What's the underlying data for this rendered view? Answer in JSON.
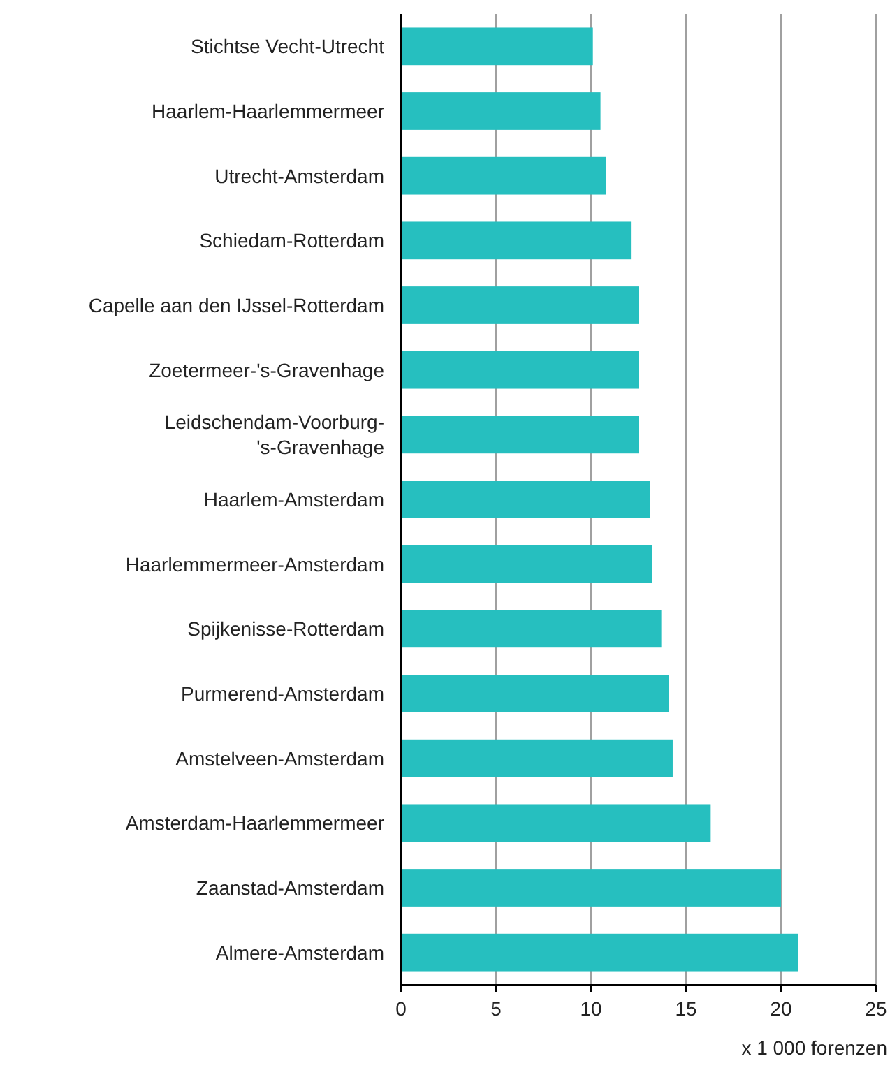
{
  "chart_data": {
    "type": "bar",
    "orientation": "horizontal",
    "xlabel": "x 1 000 forenzen",
    "categories": [
      "Stichtse Vecht-Utrecht",
      "Haarlem-Haarlemmermeer",
      "Utrecht-Amsterdam",
      "Schiedam-Rotterdam",
      "Capelle aan den IJssel-Rotterdam",
      "Zoetermeer-'s-Gravenhage",
      "Leidschendam-Voorburg-'s-Gravenhage",
      "Haarlem-Amsterdam",
      "Haarlemmermeer-Amsterdam",
      "Spijkenisse-Rotterdam",
      "Purmerend-Amsterdam",
      "Amstelveen-Amsterdam",
      "Amsterdam-Haarlemmermeer",
      "Zaanstad-Amsterdam",
      "Almere-Amsterdam"
    ],
    "values": [
      10.1,
      10.5,
      10.8,
      12.1,
      12.5,
      12.5,
      12.5,
      13.1,
      13.2,
      13.7,
      14.1,
      14.3,
      16.3,
      20.0,
      20.9
    ],
    "color": "#26bfbf",
    "xlim": [
      0,
      25
    ],
    "xticks": [
      0,
      5,
      10,
      15,
      20,
      25
    ],
    "grid": "x"
  }
}
